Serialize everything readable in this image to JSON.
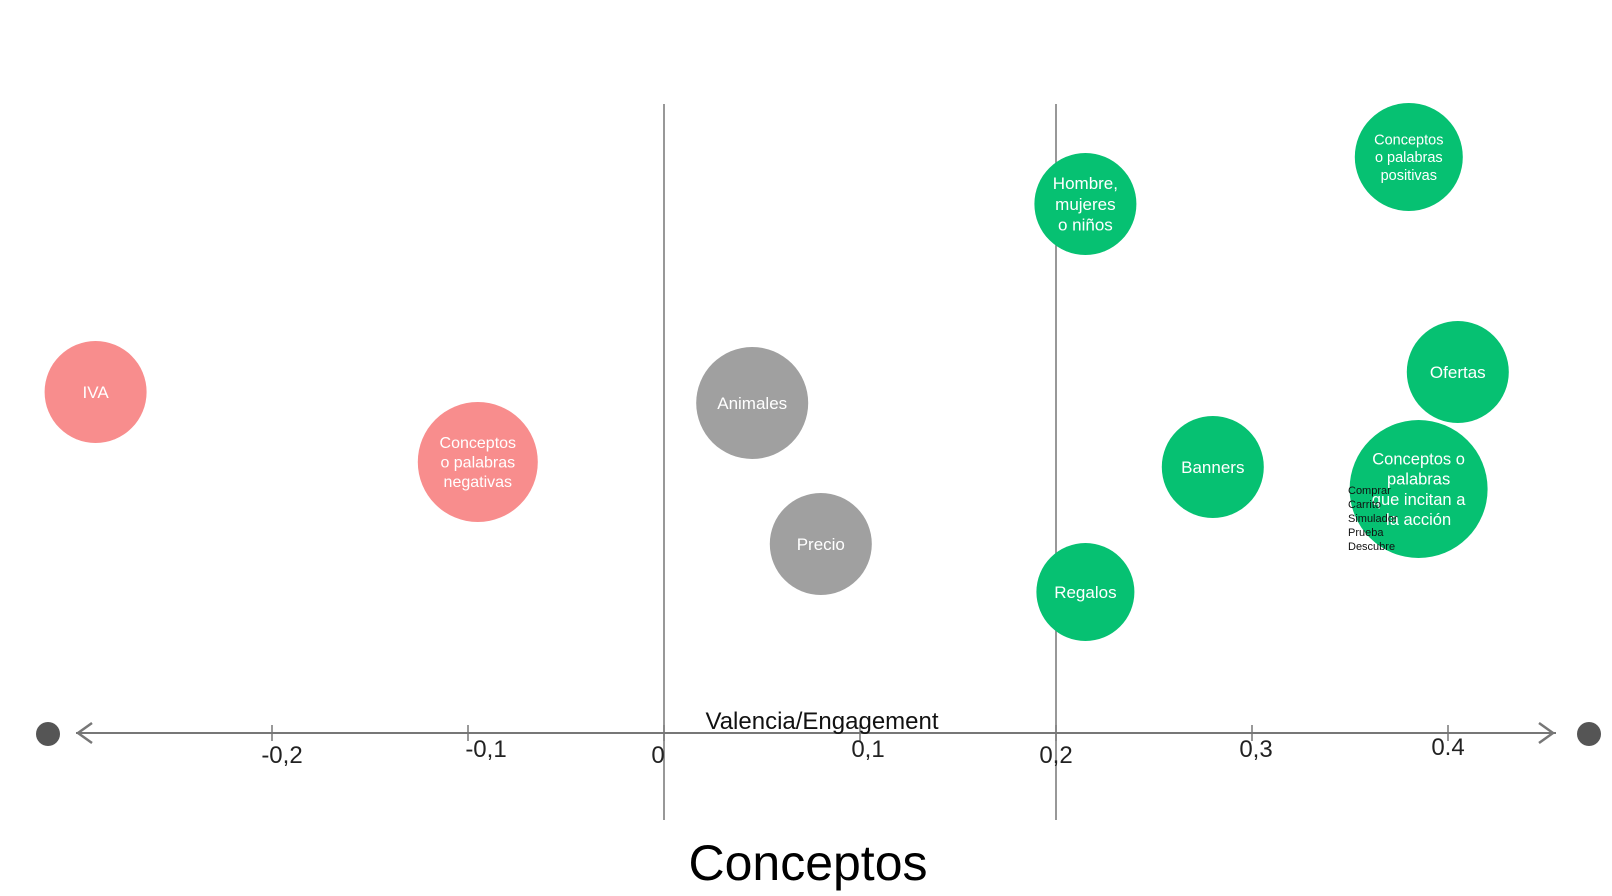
{
  "chart_data": {
    "type": "scatter",
    "title": "Conceptos",
    "xlabel": "Valencia/Engagement",
    "xlim": [
      -0.3,
      0.42
    ],
    "ticks": [
      {
        "value": -0.2,
        "label": "-0,2"
      },
      {
        "value": -0.1,
        "label": "-0,1"
      },
      {
        "value": 0,
        "label": "0"
      },
      {
        "value": 0.1,
        "label": "0,1"
      },
      {
        "value": 0.2,
        "label": "0,2"
      },
      {
        "value": 0.3,
        "label": "0,3"
      },
      {
        "value": 0.4,
        "label": "0.4"
      }
    ],
    "dividers": [
      0,
      0.2
    ],
    "groups": [
      {
        "name": "negative",
        "color": "#f88d8d"
      },
      {
        "name": "neutral",
        "color": "#a0a0a0"
      },
      {
        "name": "positive",
        "color": "#06c172"
      }
    ],
    "points": [
      {
        "lines": [
          "IVA"
        ],
        "x": -0.29,
        "group": "negative"
      },
      {
        "lines": [
          "Conceptos",
          "o palabras",
          "negativas"
        ],
        "x": -0.095,
        "group": "negative"
      },
      {
        "lines": [
          "Animales"
        ],
        "x": 0.045,
        "group": "neutral"
      },
      {
        "lines": [
          "Precio"
        ],
        "x": 0.08,
        "group": "neutral"
      },
      {
        "lines": [
          "Hombre,",
          "mujeres",
          "o niños"
        ],
        "x": 0.215,
        "group": "positive"
      },
      {
        "lines": [
          "Regalos"
        ],
        "x": 0.215,
        "group": "positive"
      },
      {
        "lines": [
          "Banners"
        ],
        "x": 0.28,
        "group": "positive"
      },
      {
        "lines": [
          "Conceptos",
          "o palabras",
          "positivas"
        ],
        "x": 0.38,
        "group": "positive"
      },
      {
        "lines": [
          "Ofertas"
        ],
        "x": 0.405,
        "group": "positive"
      },
      {
        "lines": [
          "Conceptos o",
          "palabras",
          "que incitan a",
          "la acción"
        ],
        "x": 0.385,
        "group": "positive"
      }
    ],
    "side_note": [
      "Comprar",
      "Carrito",
      "Simulador",
      "Prueba",
      "Descubre"
    ]
  }
}
